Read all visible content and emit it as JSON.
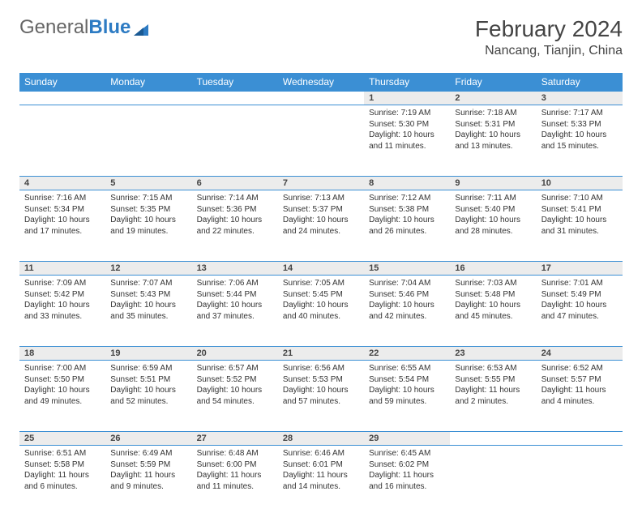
{
  "brand": {
    "part1": "General",
    "part2": "Blue"
  },
  "title": "February 2024",
  "location": "Nancang, Tianjin, China",
  "colors": {
    "header_bg": "#3b8fd4",
    "header_text": "#ffffff",
    "daynum_bg": "#ececec",
    "border": "#3b8fd4",
    "text": "#333333"
  },
  "typography": {
    "title_fontsize": 28,
    "location_fontsize": 16,
    "dayheader_fontsize": 12,
    "daynum_fontsize": 11,
    "cell_fontsize": 10
  },
  "day_headers": [
    "Sunday",
    "Monday",
    "Tuesday",
    "Wednesday",
    "Thursday",
    "Friday",
    "Saturday"
  ],
  "weeks": [
    [
      null,
      null,
      null,
      null,
      {
        "n": "1",
        "sr": "Sunrise: 7:19 AM",
        "ss": "Sunset: 5:30 PM",
        "dl": "Daylight: 10 hours and 11 minutes."
      },
      {
        "n": "2",
        "sr": "Sunrise: 7:18 AM",
        "ss": "Sunset: 5:31 PM",
        "dl": "Daylight: 10 hours and 13 minutes."
      },
      {
        "n": "3",
        "sr": "Sunrise: 7:17 AM",
        "ss": "Sunset: 5:33 PM",
        "dl": "Daylight: 10 hours and 15 minutes."
      }
    ],
    [
      {
        "n": "4",
        "sr": "Sunrise: 7:16 AM",
        "ss": "Sunset: 5:34 PM",
        "dl": "Daylight: 10 hours and 17 minutes."
      },
      {
        "n": "5",
        "sr": "Sunrise: 7:15 AM",
        "ss": "Sunset: 5:35 PM",
        "dl": "Daylight: 10 hours and 19 minutes."
      },
      {
        "n": "6",
        "sr": "Sunrise: 7:14 AM",
        "ss": "Sunset: 5:36 PM",
        "dl": "Daylight: 10 hours and 22 minutes."
      },
      {
        "n": "7",
        "sr": "Sunrise: 7:13 AM",
        "ss": "Sunset: 5:37 PM",
        "dl": "Daylight: 10 hours and 24 minutes."
      },
      {
        "n": "8",
        "sr": "Sunrise: 7:12 AM",
        "ss": "Sunset: 5:38 PM",
        "dl": "Daylight: 10 hours and 26 minutes."
      },
      {
        "n": "9",
        "sr": "Sunrise: 7:11 AM",
        "ss": "Sunset: 5:40 PM",
        "dl": "Daylight: 10 hours and 28 minutes."
      },
      {
        "n": "10",
        "sr": "Sunrise: 7:10 AM",
        "ss": "Sunset: 5:41 PM",
        "dl": "Daylight: 10 hours and 31 minutes."
      }
    ],
    [
      {
        "n": "11",
        "sr": "Sunrise: 7:09 AM",
        "ss": "Sunset: 5:42 PM",
        "dl": "Daylight: 10 hours and 33 minutes."
      },
      {
        "n": "12",
        "sr": "Sunrise: 7:07 AM",
        "ss": "Sunset: 5:43 PM",
        "dl": "Daylight: 10 hours and 35 minutes."
      },
      {
        "n": "13",
        "sr": "Sunrise: 7:06 AM",
        "ss": "Sunset: 5:44 PM",
        "dl": "Daylight: 10 hours and 37 minutes."
      },
      {
        "n": "14",
        "sr": "Sunrise: 7:05 AM",
        "ss": "Sunset: 5:45 PM",
        "dl": "Daylight: 10 hours and 40 minutes."
      },
      {
        "n": "15",
        "sr": "Sunrise: 7:04 AM",
        "ss": "Sunset: 5:46 PM",
        "dl": "Daylight: 10 hours and 42 minutes."
      },
      {
        "n": "16",
        "sr": "Sunrise: 7:03 AM",
        "ss": "Sunset: 5:48 PM",
        "dl": "Daylight: 10 hours and 45 minutes."
      },
      {
        "n": "17",
        "sr": "Sunrise: 7:01 AM",
        "ss": "Sunset: 5:49 PM",
        "dl": "Daylight: 10 hours and 47 minutes."
      }
    ],
    [
      {
        "n": "18",
        "sr": "Sunrise: 7:00 AM",
        "ss": "Sunset: 5:50 PM",
        "dl": "Daylight: 10 hours and 49 minutes."
      },
      {
        "n": "19",
        "sr": "Sunrise: 6:59 AM",
        "ss": "Sunset: 5:51 PM",
        "dl": "Daylight: 10 hours and 52 minutes."
      },
      {
        "n": "20",
        "sr": "Sunrise: 6:57 AM",
        "ss": "Sunset: 5:52 PM",
        "dl": "Daylight: 10 hours and 54 minutes."
      },
      {
        "n": "21",
        "sr": "Sunrise: 6:56 AM",
        "ss": "Sunset: 5:53 PM",
        "dl": "Daylight: 10 hours and 57 minutes."
      },
      {
        "n": "22",
        "sr": "Sunrise: 6:55 AM",
        "ss": "Sunset: 5:54 PM",
        "dl": "Daylight: 10 hours and 59 minutes."
      },
      {
        "n": "23",
        "sr": "Sunrise: 6:53 AM",
        "ss": "Sunset: 5:55 PM",
        "dl": "Daylight: 11 hours and 2 minutes."
      },
      {
        "n": "24",
        "sr": "Sunrise: 6:52 AM",
        "ss": "Sunset: 5:57 PM",
        "dl": "Daylight: 11 hours and 4 minutes."
      }
    ],
    [
      {
        "n": "25",
        "sr": "Sunrise: 6:51 AM",
        "ss": "Sunset: 5:58 PM",
        "dl": "Daylight: 11 hours and 6 minutes."
      },
      {
        "n": "26",
        "sr": "Sunrise: 6:49 AM",
        "ss": "Sunset: 5:59 PM",
        "dl": "Daylight: 11 hours and 9 minutes."
      },
      {
        "n": "27",
        "sr": "Sunrise: 6:48 AM",
        "ss": "Sunset: 6:00 PM",
        "dl": "Daylight: 11 hours and 11 minutes."
      },
      {
        "n": "28",
        "sr": "Sunrise: 6:46 AM",
        "ss": "Sunset: 6:01 PM",
        "dl": "Daylight: 11 hours and 14 minutes."
      },
      {
        "n": "29",
        "sr": "Sunrise: 6:45 AM",
        "ss": "Sunset: 6:02 PM",
        "dl": "Daylight: 11 hours and 16 minutes."
      },
      null,
      null
    ]
  ]
}
